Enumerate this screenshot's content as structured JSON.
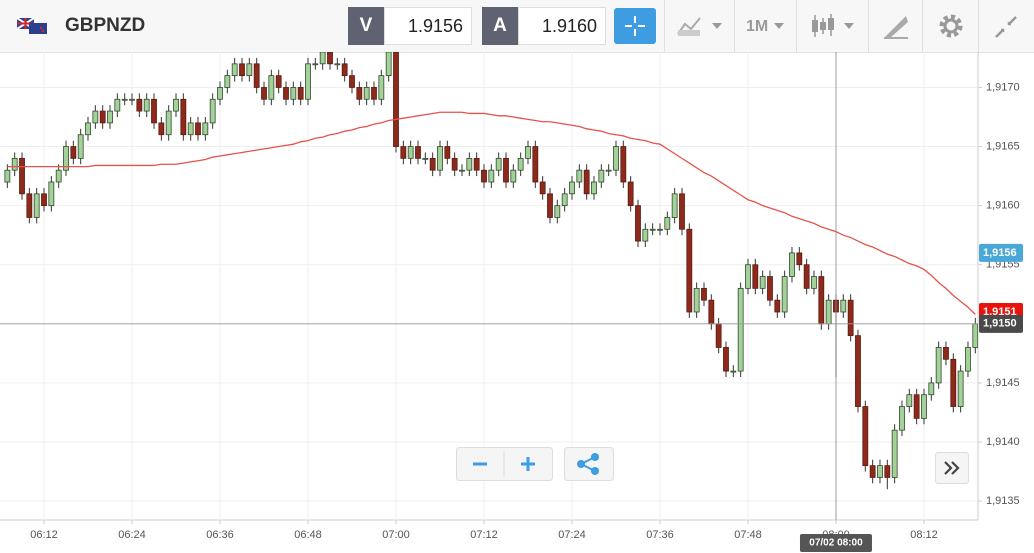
{
  "toolbar": {
    "symbol": "GBPNZD",
    "sell": {
      "label": "V",
      "price": "1.9156"
    },
    "buy": {
      "label": "A",
      "price": "1.9160"
    },
    "timeframe": "1M"
  },
  "chart_data": {
    "type": "candlestick",
    "categories": [
      "06:07",
      "06:08",
      "06:09",
      "06:10",
      "06:11",
      "06:12",
      "06:13",
      "06:14",
      "06:15",
      "06:16",
      "06:17",
      "06:18",
      "06:19",
      "06:20",
      "06:21",
      "06:22",
      "06:23",
      "06:24",
      "06:25",
      "06:26",
      "06:27",
      "06:28",
      "06:29",
      "06:30",
      "06:31",
      "06:32",
      "06:33",
      "06:34",
      "06:35",
      "06:36",
      "06:37",
      "06:38",
      "06:39",
      "06:40",
      "06:41",
      "06:42",
      "06:43",
      "06:44",
      "06:45",
      "06:46",
      "06:47",
      "06:48",
      "06:49",
      "06:50",
      "06:51",
      "06:52",
      "06:53",
      "06:54",
      "06:55",
      "06:56",
      "06:57",
      "06:58",
      "06:59",
      "07:00",
      "07:01",
      "07:02",
      "07:03",
      "07:04",
      "07:05",
      "07:06",
      "07:07",
      "07:08",
      "07:09",
      "07:10",
      "07:11",
      "07:12",
      "07:13",
      "07:14",
      "07:15",
      "07:16",
      "07:17",
      "07:18",
      "07:19",
      "07:20",
      "07:21",
      "07:22",
      "07:23",
      "07:24",
      "07:25",
      "07:26",
      "07:27",
      "07:28",
      "07:29",
      "07:30",
      "07:31",
      "07:32",
      "07:33",
      "07:34",
      "07:35",
      "07:36",
      "07:37",
      "07:38",
      "07:39",
      "07:40",
      "07:41",
      "07:42",
      "07:43",
      "07:44",
      "07:45",
      "07:46",
      "07:47",
      "07:48",
      "07:49",
      "07:50",
      "07:51",
      "07:52",
      "07:53",
      "07:54",
      "07:55",
      "07:56",
      "07:57",
      "07:58",
      "07:59",
      "08:00",
      "08:01",
      "08:02",
      "08:03",
      "08:04",
      "08:05",
      "08:06",
      "08:07",
      "08:08",
      "08:09",
      "08:10",
      "08:11",
      "08:12",
      "08:13",
      "08:14",
      "08:15",
      "08:16",
      "08:17",
      "08:18",
      "08:19"
    ],
    "open": [
      1.9162,
      1.9163,
      1.9164,
      1.9161,
      1.9159,
      1.9161,
      1.916,
      1.9162,
      1.9163,
      1.9165,
      1.9164,
      1.9166,
      1.9167,
      1.9168,
      1.9167,
      1.9168,
      1.9169,
      1.9169,
      1.9169,
      1.9168,
      1.9169,
      1.9167,
      1.9166,
      1.9168,
      1.9169,
      1.9166,
      1.9167,
      1.9166,
      1.9167,
      1.9169,
      1.917,
      1.9171,
      1.9172,
      1.9171,
      1.9172,
      1.917,
      1.9169,
      1.9171,
      1.917,
      1.9169,
      1.917,
      1.9169,
      1.9172,
      1.9172,
      1.9173,
      1.9172,
      1.9172,
      1.9171,
      1.917,
      1.9169,
      1.917,
      1.9169,
      1.9171,
      1.9173,
      1.9165,
      1.9164,
      1.9165,
      1.9164,
      1.9164,
      1.9163,
      1.9165,
      1.9164,
      1.9163,
      1.9163,
      1.9164,
      1.9163,
      1.9162,
      1.9163,
      1.9164,
      1.9162,
      1.9163,
      1.9164,
      1.9165,
      1.9162,
      1.9161,
      1.9159,
      1.916,
      1.9161,
      1.9162,
      1.9163,
      1.9161,
      1.9162,
      1.9163,
      1.9163,
      1.9165,
      1.9162,
      1.916,
      1.9157,
      1.9158,
      1.9158,
      1.9158,
      1.9159,
      1.9161,
      1.9158,
      1.9151,
      1.9153,
      1.9152,
      1.915,
      1.9148,
      1.9146,
      1.9146,
      1.9153,
      1.9155,
      1.9153,
      1.9154,
      1.9152,
      1.9151,
      1.9154,
      1.9156,
      1.9155,
      1.9153,
      1.9154,
      1.915,
      1.9152,
      1.9151,
      1.9152,
      1.9149,
      1.9143,
      1.9138,
      1.9137,
      1.9138,
      1.9137,
      1.9141,
      1.9143,
      1.9144,
      1.9142,
      1.9144,
      1.9145,
      1.9148,
      1.9147,
      1.9143,
      1.9146,
      1.9148
    ],
    "high": [
      1.91635,
      1.91645,
      1.91645,
      1.91615,
      1.91615,
      1.91615,
      1.91625,
      1.91635,
      1.91655,
      1.91655,
      1.91665,
      1.91675,
      1.91685,
      1.91685,
      1.91685,
      1.91695,
      1.91695,
      1.91695,
      1.91695,
      1.91695,
      1.91695,
      1.91675,
      1.91685,
      1.91695,
      1.91695,
      1.91675,
      1.91675,
      1.91675,
      1.91695,
      1.91705,
      1.91715,
      1.91725,
      1.91725,
      1.91725,
      1.91725,
      1.91705,
      1.91715,
      1.91715,
      1.91705,
      1.91705,
      1.91705,
      1.91725,
      1.91725,
      1.9173,
      1.9173,
      1.91725,
      1.91725,
      1.91715,
      1.91705,
      1.91705,
      1.91705,
      1.91715,
      1.9173,
      1.9173,
      1.91655,
      1.91655,
      1.91655,
      1.91645,
      1.91645,
      1.91655,
      1.91655,
      1.91645,
      1.91635,
      1.91645,
      1.91645,
      1.91635,
      1.91635,
      1.91645,
      1.91645,
      1.91635,
      1.91645,
      1.91655,
      1.91655,
      1.91625,
      1.91615,
      1.91605,
      1.91615,
      1.91625,
      1.91635,
      1.91635,
      1.91625,
      1.91635,
      1.91635,
      1.91655,
      1.91655,
      1.91625,
      1.91605,
      1.91585,
      1.91585,
      1.91585,
      1.91595,
      1.91615,
      1.91615,
      1.91585,
      1.91535,
      1.91535,
      1.91525,
      1.91505,
      1.91485,
      1.91465,
      1.91535,
      1.91555,
      1.91555,
      1.91545,
      1.91545,
      1.91525,
      1.91545,
      1.91565,
      1.91565,
      1.91555,
      1.91545,
      1.91545,
      1.91525,
      1.91525,
      1.91525,
      1.91525,
      1.91495,
      1.91435,
      1.91385,
      1.91385,
      1.91385,
      1.91415,
      1.91435,
      1.91445,
      1.91445,
      1.91445,
      1.91455,
      1.91485,
      1.91485,
      1.91475,
      1.91465,
      1.91485,
      1.91505
    ],
    "low": [
      1.91615,
      1.91625,
      1.91605,
      1.91585,
      1.91585,
      1.91595,
      1.91595,
      1.91615,
      1.91625,
      1.91635,
      1.91635,
      1.91655,
      1.91665,
      1.91665,
      1.91665,
      1.91675,
      1.91685,
      1.91685,
      1.91675,
      1.91675,
      1.91665,
      1.91655,
      1.91655,
      1.91675,
      1.91655,
      1.91655,
      1.91655,
      1.91655,
      1.91665,
      1.91685,
      1.91695,
      1.91705,
      1.91705,
      1.91705,
      1.91695,
      1.91685,
      1.91685,
      1.91695,
      1.91685,
      1.91685,
      1.91685,
      1.91685,
      1.91715,
      1.91715,
      1.91715,
      1.91715,
      1.91705,
      1.91695,
      1.91685,
      1.91685,
      1.91685,
      1.91685,
      1.91705,
      1.91645,
      1.91635,
      1.91635,
      1.91635,
      1.91635,
      1.91625,
      1.91625,
      1.91635,
      1.91625,
      1.91625,
      1.91625,
      1.91625,
      1.91615,
      1.91615,
      1.91625,
      1.91615,
      1.91615,
      1.91625,
      1.91635,
      1.91615,
      1.91605,
      1.91585,
      1.91585,
      1.91595,
      1.91605,
      1.91615,
      1.91605,
      1.91605,
      1.91615,
      1.91625,
      1.91625,
      1.91615,
      1.91595,
      1.91565,
      1.91565,
      1.91575,
      1.91575,
      1.91575,
      1.91585,
      1.91575,
      1.91505,
      1.91505,
      1.91515,
      1.91495,
      1.91475,
      1.91455,
      1.91455,
      1.91455,
      1.91525,
      1.91525,
      1.91525,
      1.91515,
      1.91505,
      1.91505,
      1.91535,
      1.91545,
      1.91525,
      1.91525,
      1.91495,
      1.91495,
      1.91455,
      1.91505,
      1.91485,
      1.91425,
      1.91375,
      1.91365,
      1.91365,
      1.9136,
      1.91365,
      1.91405,
      1.91425,
      1.91415,
      1.91415,
      1.91435,
      1.91445,
      1.91465,
      1.91425,
      1.91425,
      1.91455,
      1.91475
    ],
    "close": [
      1.9163,
      1.9164,
      1.9161,
      1.9159,
      1.9161,
      1.916,
      1.9162,
      1.9163,
      1.9165,
      1.9164,
      1.9166,
      1.9167,
      1.9168,
      1.9167,
      1.9168,
      1.9169,
      1.9169,
      1.9169,
      1.9168,
      1.9169,
      1.9167,
      1.9166,
      1.9168,
      1.9169,
      1.9166,
      1.9167,
      1.9166,
      1.9167,
      1.9169,
      1.917,
      1.9171,
      1.9172,
      1.9171,
      1.9172,
      1.917,
      1.9169,
      1.9171,
      1.917,
      1.9169,
      1.917,
      1.9169,
      1.9172,
      1.9172,
      1.9173,
      1.9172,
      1.9172,
      1.9171,
      1.917,
      1.9169,
      1.917,
      1.9169,
      1.9171,
      1.9173,
      1.9165,
      1.9164,
      1.9165,
      1.9164,
      1.9164,
      1.9163,
      1.9165,
      1.9164,
      1.9163,
      1.9163,
      1.9164,
      1.9163,
      1.9162,
      1.9163,
      1.9164,
      1.9162,
      1.9163,
      1.9164,
      1.9165,
      1.9162,
      1.9161,
      1.9159,
      1.916,
      1.9161,
      1.9162,
      1.9163,
      1.9161,
      1.9162,
      1.9163,
      1.9163,
      1.9165,
      1.9162,
      1.916,
      1.9157,
      1.9158,
      1.9158,
      1.9158,
      1.9159,
      1.9161,
      1.9158,
      1.9151,
      1.9153,
      1.9152,
      1.915,
      1.9148,
      1.9146,
      1.9146,
      1.9153,
      1.9155,
      1.9153,
      1.9154,
      1.9152,
      1.9151,
      1.9154,
      1.9156,
      1.9155,
      1.9153,
      1.9154,
      1.915,
      1.9152,
      1.9151,
      1.9152,
      1.9149,
      1.9143,
      1.9138,
      1.9137,
      1.9138,
      1.9137,
      1.9141,
      1.9143,
      1.9144,
      1.9142,
      1.9144,
      1.9145,
      1.9148,
      1.9147,
      1.9143,
      1.9146,
      1.9148,
      1.915
    ],
    "up_color": "#a4d19a",
    "down_color": "#8e2a1c",
    "moving_average": {
      "color": "#e5534b",
      "values": [
        1.91633,
        1.91633,
        1.91633,
        1.91633,
        1.91633,
        1.91633,
        1.91633,
        1.91633,
        1.91633,
        1.91633,
        1.91633,
        1.91633,
        1.91634,
        1.91634,
        1.91634,
        1.91634,
        1.91634,
        1.91634,
        1.91634,
        1.91634,
        1.91634,
        1.91635,
        1.91635,
        1.91635,
        1.91636,
        1.91637,
        1.91638,
        1.91639,
        1.91641,
        1.91642,
        1.91643,
        1.91644,
        1.91645,
        1.91646,
        1.91647,
        1.91648,
        1.91649,
        1.9165,
        1.91651,
        1.91652,
        1.91654,
        1.91655,
        1.91657,
        1.91658,
        1.9166,
        1.91661,
        1.91663,
        1.91664,
        1.91666,
        1.91667,
        1.91669,
        1.9167,
        1.91672,
        1.91673,
        1.91674,
        1.91675,
        1.91676,
        1.91677,
        1.91678,
        1.91679,
        1.91679,
        1.91679,
        1.91679,
        1.91678,
        1.91678,
        1.91678,
        1.91677,
        1.91676,
        1.91676,
        1.91675,
        1.91674,
        1.91673,
        1.91672,
        1.91671,
        1.91671,
        1.9167,
        1.91669,
        1.91668,
        1.91667,
        1.91665,
        1.91664,
        1.91663,
        1.91661,
        1.9166,
        1.91659,
        1.91657,
        1.91656,
        1.91655,
        1.91653,
        1.91652,
        1.91648,
        1.91644,
        1.9164,
        1.91636,
        1.91632,
        1.91628,
        1.91625,
        1.91621,
        1.91617,
        1.91613,
        1.91609,
        1.91605,
        1.91603,
        1.916,
        1.91598,
        1.91596,
        1.91594,
        1.91591,
        1.91589,
        1.91587,
        1.91585,
        1.91582,
        1.9158,
        1.91578,
        1.91575,
        1.91573,
        1.9157,
        1.91567,
        1.91565,
        1.91562,
        1.91559,
        1.91557,
        1.91554,
        1.91551,
        1.91549,
        1.91546,
        1.91541,
        1.91535,
        1.9153,
        1.91524,
        1.91519,
        1.91514,
        1.91508
      ]
    },
    "ylim": [
      1.91334,
      1.9173
    ],
    "yticks": [
      {
        "value": 1.9135,
        "label": "1,9135"
      },
      {
        "value": 1.914,
        "label": "1,9140"
      },
      {
        "value": 1.9145,
        "label": "1,9145"
      },
      {
        "value": 1.915,
        "label": "1,9150"
      },
      {
        "value": 1.9155,
        "label": "1,9155"
      },
      {
        "value": 1.916,
        "label": "1,9160"
      },
      {
        "value": 1.9165,
        "label": "1,9165"
      },
      {
        "value": 1.917,
        "label": "1,9170"
      }
    ],
    "xticks": [
      "06:12",
      "06:24",
      "06:36",
      "06:48",
      "07:00",
      "07:12",
      "07:24",
      "07:36",
      "07:48",
      "08:00",
      "08:12"
    ],
    "grid": true,
    "price_markers": [
      {
        "value": 1.9151,
        "label": "1,9151",
        "color": "#e8140c"
      },
      {
        "value": 1.9156,
        "label": "1,9156",
        "color": "#4aa8d8"
      },
      {
        "value": 1.915,
        "label": "1,9150",
        "color": "#4a4a4a"
      }
    ],
    "crosshair": {
      "x": "08:00",
      "label": "07/02 08:00"
    }
  }
}
